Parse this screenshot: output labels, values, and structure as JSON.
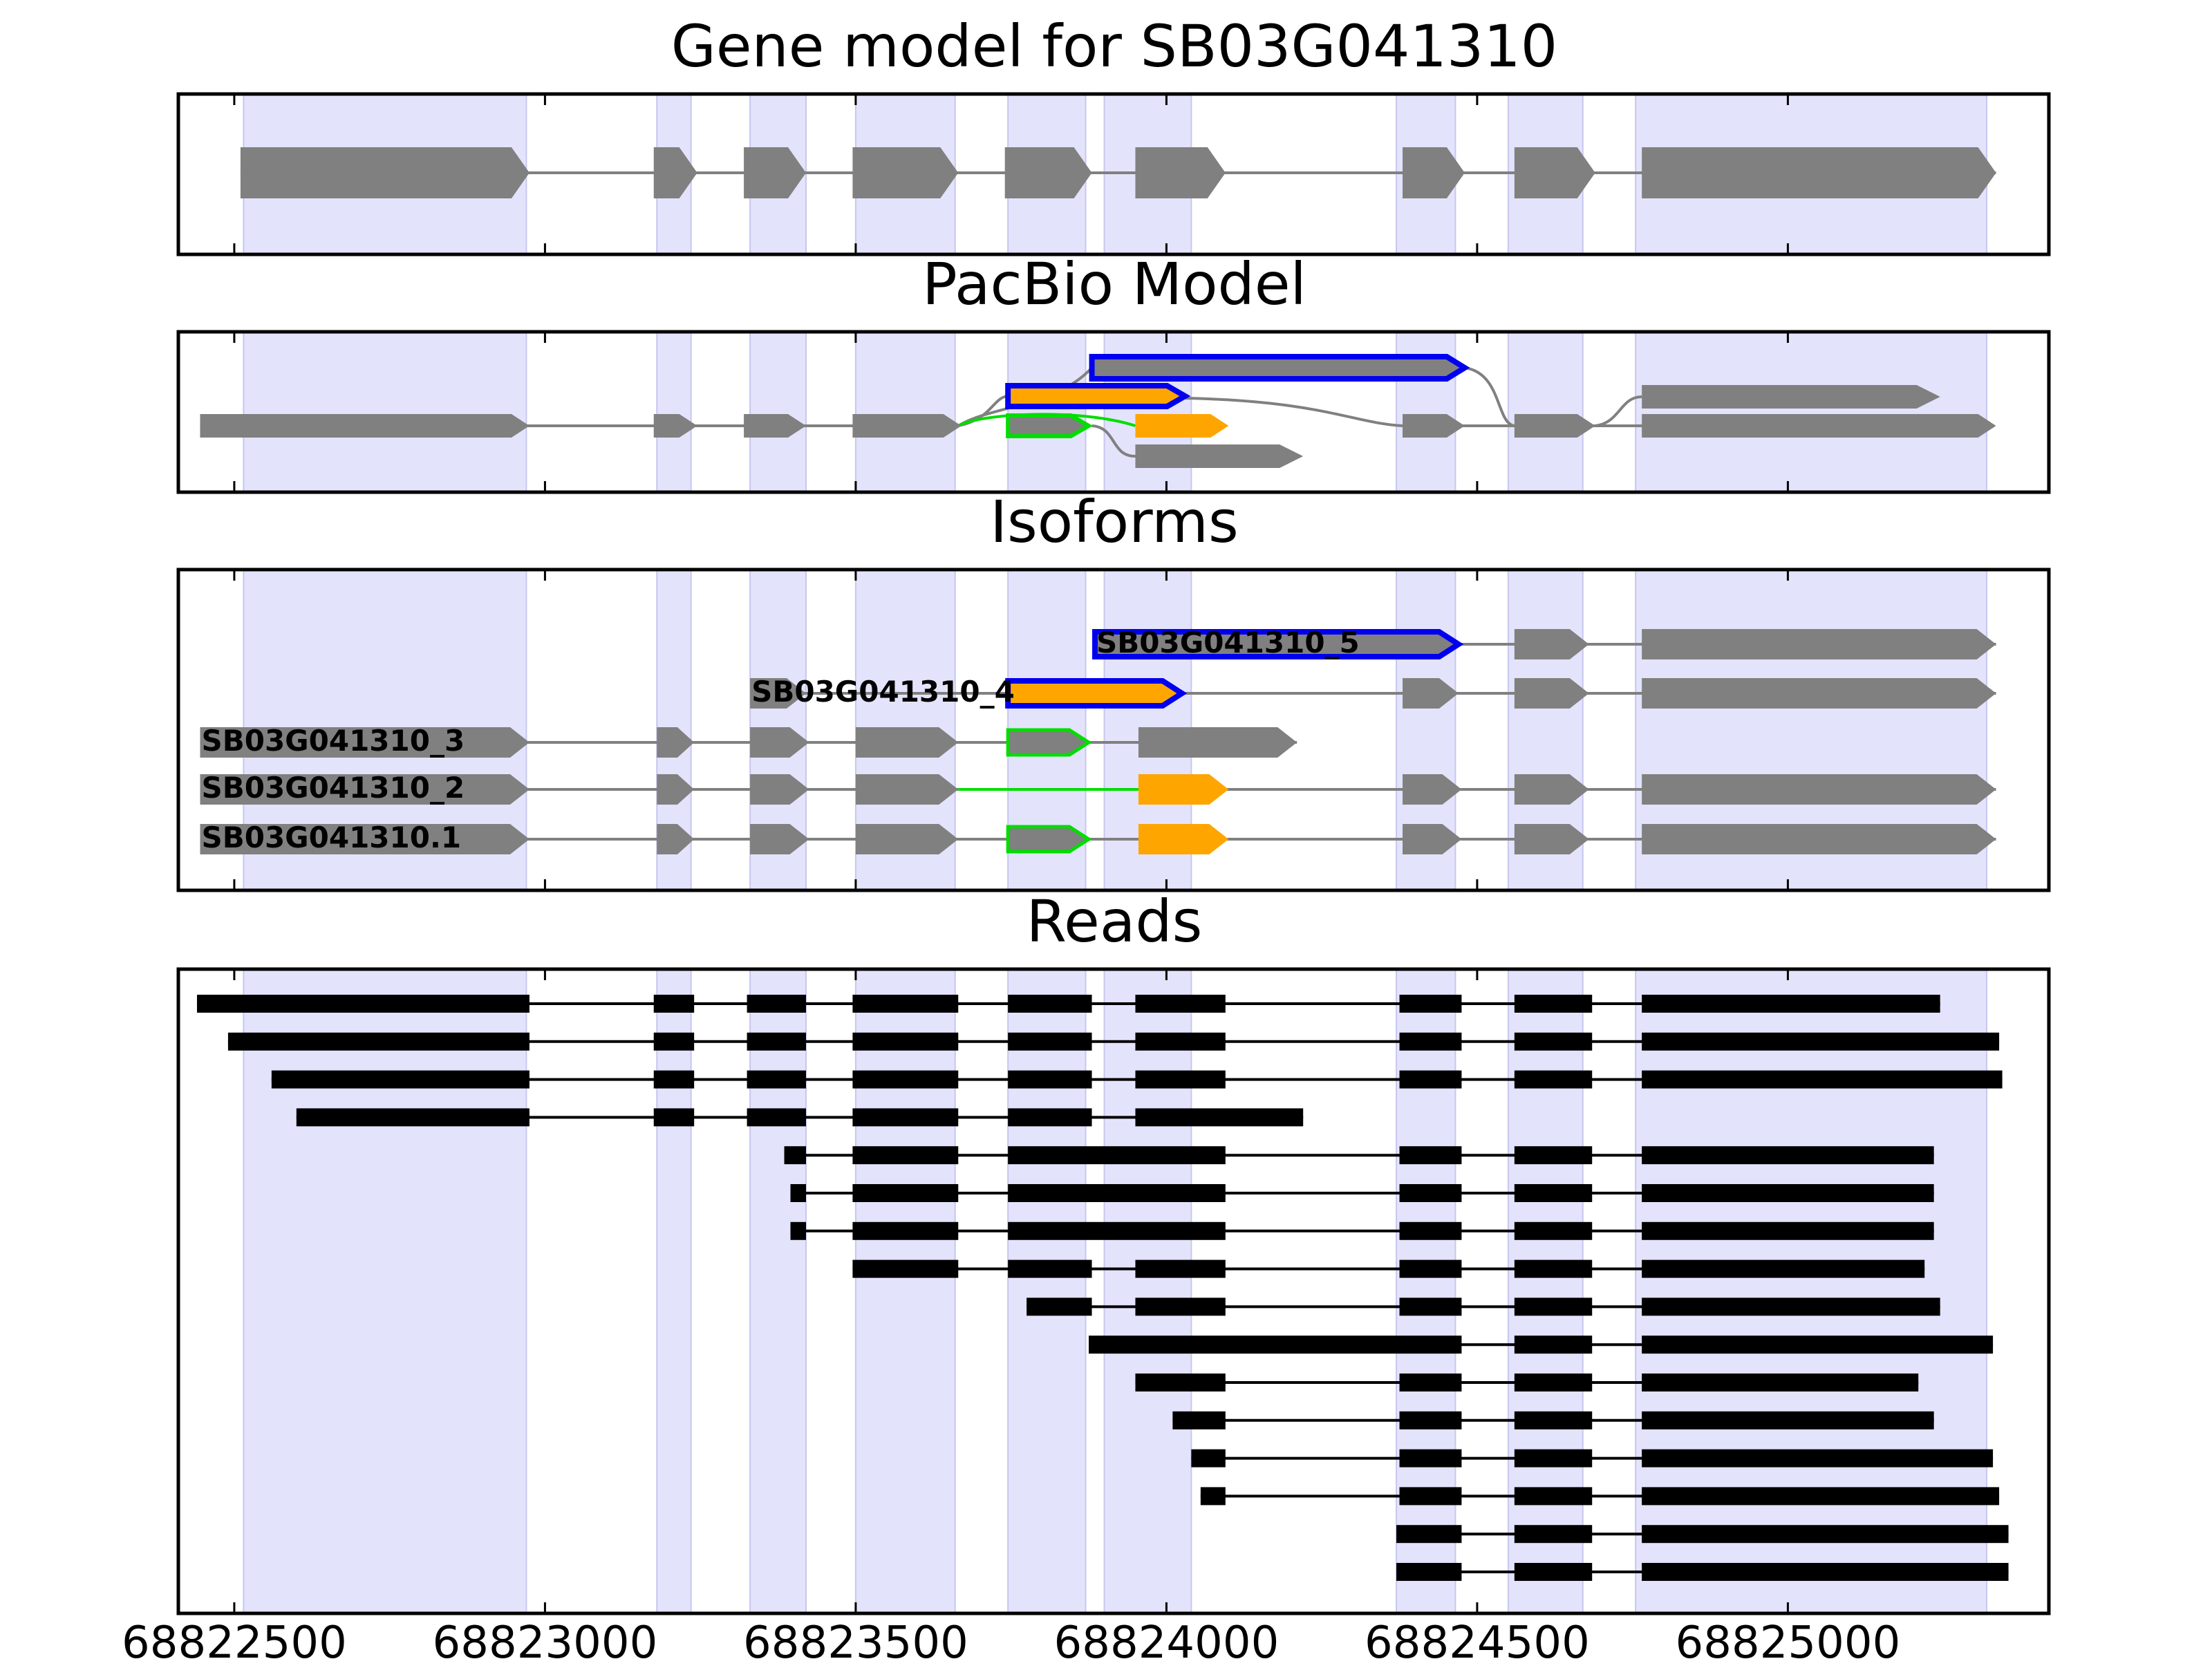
{
  "titles": {
    "gene_model": "Gene model for SB03G041310",
    "pacbio": "PacBio Model",
    "isoforms": "Isoforms",
    "reads": "Reads"
  },
  "colors": {
    "exon_gray": "#808080",
    "intron_gray": "#808080",
    "shade": "#e3e3fc",
    "shade_edge": "#c7c7ef",
    "blue": "#0000ee",
    "orange": "#ffa500",
    "green": "#00dd00",
    "read": "#000000"
  },
  "chart_data": {
    "type": "table",
    "xlim": [
      68822410,
      68825420
    ],
    "x_ticks": [
      {
        "value": 68822500,
        "label": "68822500"
      },
      {
        "value": 68823000,
        "label": "68823000"
      },
      {
        "value": 68823500,
        "label": "68823500"
      },
      {
        "value": 68824000,
        "label": "68824000"
      },
      {
        "value": 68824500,
        "label": "68824500"
      },
      {
        "value": 68825000,
        "label": "68825000"
      }
    ],
    "exon_regions": [
      [
        68822515,
        68822970
      ],
      [
        68823180,
        68823235
      ],
      [
        68823330,
        68823420
      ],
      [
        68823500,
        68823660
      ],
      [
        68823590,
        68823590
      ],
      [
        68823745,
        68823870
      ],
      [
        68823900,
        68824040
      ],
      [
        68824370,
        68824465
      ],
      [
        68824550,
        68824670
      ],
      [
        68824755,
        68825320
      ]
    ],
    "gene_model": {
      "exons": [
        [
          68822510,
          68822975
        ],
        [
          68823175,
          68823245
        ],
        [
          68823320,
          68823420
        ],
        [
          68823495,
          68823665
        ],
        [
          68823740,
          68823880
        ],
        [
          68823950,
          68824095
        ],
        [
          68824380,
          68824480
        ],
        [
          68824560,
          68824690
        ],
        [
          68824765,
          68825335
        ]
      ]
    },
    "pacbio_models": [
      {
        "color": "#808080",
        "exons": [
          [
            68822445,
            68822975
          ],
          [
            68823175,
            68823245
          ],
          [
            68823320,
            68823420
          ],
          [
            68823495,
            68823670
          ]
        ],
        "connect_to": [
          [
            68823670,
            68823740
          ]
        ]
      },
      {
        "color": "#808080",
        "exons": [
          [
            68823950,
            68824220
          ]
        ]
      },
      {
        "color": "#808080",
        "exons": [
          [
            68824380,
            68824480
          ],
          [
            68824560,
            68824690
          ],
          [
            68824765,
            68825330
          ]
        ]
      },
      {
        "color": "#808080",
        "exons": [
          [
            68824765,
            68825245
          ]
        ]
      },
      {
        "color": "#0000ee",
        "fill": "#808080",
        "exons": [
          [
            68823880,
            68824480
          ]
        ]
      },
      {
        "color": "#0000ee",
        "fill": "#ffa500",
        "exons": [
          [
            68823745,
            68824030
          ]
        ]
      },
      {
        "color": "#00dd00",
        "fill": "#808080",
        "exons": [
          [
            68823745,
            68823870
          ]
        ]
      },
      {
        "color": "#808080",
        "fill": "#ffa500",
        "exons": [
          [
            68823950,
            68824100
          ]
        ]
      }
    ],
    "isoforms": [
      {
        "name": "SB03G041310_5",
        "exons": [
          {
            "s": 68823885,
            "e": 68824470,
            "fill": "#808080",
            "stroke": "#0000ee"
          },
          {
            "s": 68824560,
            "e": 68824680,
            "fill": "#808080"
          },
          {
            "s": 68824765,
            "e": 68825335,
            "fill": "#808080"
          }
        ]
      },
      {
        "name": "SB03G041310_4",
        "exons": [
          {
            "s": 68823330,
            "e": 68823420,
            "fill": "#808080"
          },
          {
            "s": 68823745,
            "e": 68824025,
            "fill": "#ffa500",
            "stroke": "#0000ee"
          },
          {
            "s": 68824380,
            "e": 68824470,
            "fill": "#808080"
          },
          {
            "s": 68824560,
            "e": 68824680,
            "fill": "#808080"
          },
          {
            "s": 68824765,
            "e": 68825335,
            "fill": "#808080"
          }
        ]
      },
      {
        "name": "SB03G041310_3",
        "exons": [
          {
            "s": 68822445,
            "e": 68822975,
            "fill": "#808080"
          },
          {
            "s": 68823180,
            "e": 68823240,
            "fill": "#808080"
          },
          {
            "s": 68823330,
            "e": 68823425,
            "fill": "#808080"
          },
          {
            "s": 68823500,
            "e": 68823665,
            "fill": "#808080"
          },
          {
            "s": 68823745,
            "e": 68823875,
            "fill": "#808080",
            "stroke": "#00dd00"
          },
          {
            "s": 68823955,
            "e": 68824210,
            "fill": "#808080"
          }
        ]
      },
      {
        "name": "SB03G041310_2",
        "exons": [
          {
            "s": 68822445,
            "e": 68822975,
            "fill": "#808080"
          },
          {
            "s": 68823180,
            "e": 68823240,
            "fill": "#808080"
          },
          {
            "s": 68823330,
            "e": 68823425,
            "fill": "#808080"
          },
          {
            "s": 68823500,
            "e": 68823665,
            "fill": "#808080"
          },
          {
            "s": 68823955,
            "e": 68824100,
            "fill": "#ffa500"
          },
          {
            "s": 68824380,
            "e": 68824475,
            "fill": "#808080"
          },
          {
            "s": 68824560,
            "e": 68824680,
            "fill": "#808080"
          },
          {
            "s": 68824765,
            "e": 68825335,
            "fill": "#808080"
          }
        ],
        "green_intron": [
          68823665,
          68823955
        ]
      },
      {
        "name": "SB03G041310.1",
        "exons": [
          {
            "s": 68822445,
            "e": 68822975,
            "fill": "#808080"
          },
          {
            "s": 68823180,
            "e": 68823240,
            "fill": "#808080"
          },
          {
            "s": 68823330,
            "e": 68823425,
            "fill": "#808080"
          },
          {
            "s": 68823500,
            "e": 68823665,
            "fill": "#808080"
          },
          {
            "s": 68823745,
            "e": 68823875,
            "fill": "#808080",
            "stroke": "#00dd00"
          },
          {
            "s": 68823955,
            "e": 68824100,
            "fill": "#ffa500"
          },
          {
            "s": 68824380,
            "e": 68824475,
            "fill": "#808080"
          },
          {
            "s": 68824560,
            "e": 68824680,
            "fill": "#808080"
          },
          {
            "s": 68824765,
            "e": 68825335,
            "fill": "#808080"
          }
        ]
      }
    ],
    "reads": [
      [
        [
          68822440,
          68822975
        ],
        [
          68823175,
          68823240
        ],
        [
          68823325,
          68823420
        ],
        [
          68823495,
          68823665
        ],
        [
          68823745,
          68823880
        ],
        [
          68823950,
          68824095
        ],
        [
          68824375,
          68824475
        ],
        [
          68824560,
          68824685
        ],
        [
          68824765,
          68825245
        ]
      ],
      [
        [
          68822490,
          68822975
        ],
        [
          68823175,
          68823240
        ],
        [
          68823325,
          68823420
        ],
        [
          68823495,
          68823665
        ],
        [
          68823745,
          68823880
        ],
        [
          68823950,
          68824095
        ],
        [
          68824375,
          68824475
        ],
        [
          68824560,
          68824685
        ],
        [
          68824765,
          68825340
        ]
      ],
      [
        [
          68822560,
          68822975
        ],
        [
          68823175,
          68823240
        ],
        [
          68823325,
          68823420
        ],
        [
          68823495,
          68823665
        ],
        [
          68823745,
          68823880
        ],
        [
          68823950,
          68824095
        ],
        [
          68824375,
          68824475
        ],
        [
          68824560,
          68824685
        ],
        [
          68824765,
          68825345
        ]
      ],
      [
        [
          68822600,
          68822975
        ],
        [
          68823175,
          68823240
        ],
        [
          68823325,
          68823420
        ],
        [
          68823495,
          68823665
        ],
        [
          68823745,
          68823880
        ],
        [
          68823950,
          68824220
        ]
      ],
      [
        [
          68823385,
          68823420
        ],
        [
          68823495,
          68823665
        ],
        [
          68823745,
          68824095
        ],
        [
          68824375,
          68824475
        ],
        [
          68824560,
          68824685
        ],
        [
          68824765,
          68825235
        ]
      ],
      [
        [
          68823395,
          68823420
        ],
        [
          68823495,
          68823665
        ],
        [
          68823745,
          68824095
        ],
        [
          68824375,
          68824475
        ],
        [
          68824560,
          68824685
        ],
        [
          68824765,
          68825235
        ]
      ],
      [
        [
          68823395,
          68823420
        ],
        [
          68823495,
          68823665
        ],
        [
          68823745,
          68824095
        ],
        [
          68824375,
          68824475
        ],
        [
          68824560,
          68824685
        ],
        [
          68824765,
          68825235
        ]
      ],
      [
        [
          68823495,
          68823665
        ],
        [
          68823745,
          68823880
        ],
        [
          68823950,
          68824095
        ],
        [
          68824375,
          68824475
        ],
        [
          68824560,
          68824685
        ],
        [
          68824765,
          68825220
        ]
      ],
      [
        [
          68823775,
          68823880
        ],
        [
          68823950,
          68824095
        ],
        [
          68824375,
          68824475
        ],
        [
          68824560,
          68824685
        ],
        [
          68824765,
          68825245
        ]
      ],
      [
        [
          68823875,
          68824475
        ],
        [
          68824560,
          68824685
        ],
        [
          68824765,
          68825330
        ]
      ],
      [
        [
          68823950,
          68824095
        ],
        [
          68824375,
          68824475
        ],
        [
          68824560,
          68824685
        ],
        [
          68824765,
          68825210
        ]
      ],
      [
        [
          68824010,
          68824095
        ],
        [
          68824375,
          68824475
        ],
        [
          68824560,
          68824685
        ],
        [
          68824765,
          68825235
        ]
      ],
      [
        [
          68824040,
          68824095
        ],
        [
          68824375,
          68824475
        ],
        [
          68824560,
          68824685
        ],
        [
          68824765,
          68825330
        ]
      ],
      [
        [
          68824055,
          68824095
        ],
        [
          68824375,
          68824475
        ],
        [
          68824560,
          68824685
        ],
        [
          68824765,
          68825340
        ]
      ],
      [
        [
          68824370,
          68824475
        ],
        [
          68824560,
          68824685
        ],
        [
          68824765,
          68825355
        ]
      ],
      [
        [
          68824370,
          68824475
        ],
        [
          68824560,
          68824685
        ],
        [
          68824765,
          68825355
        ]
      ]
    ]
  }
}
